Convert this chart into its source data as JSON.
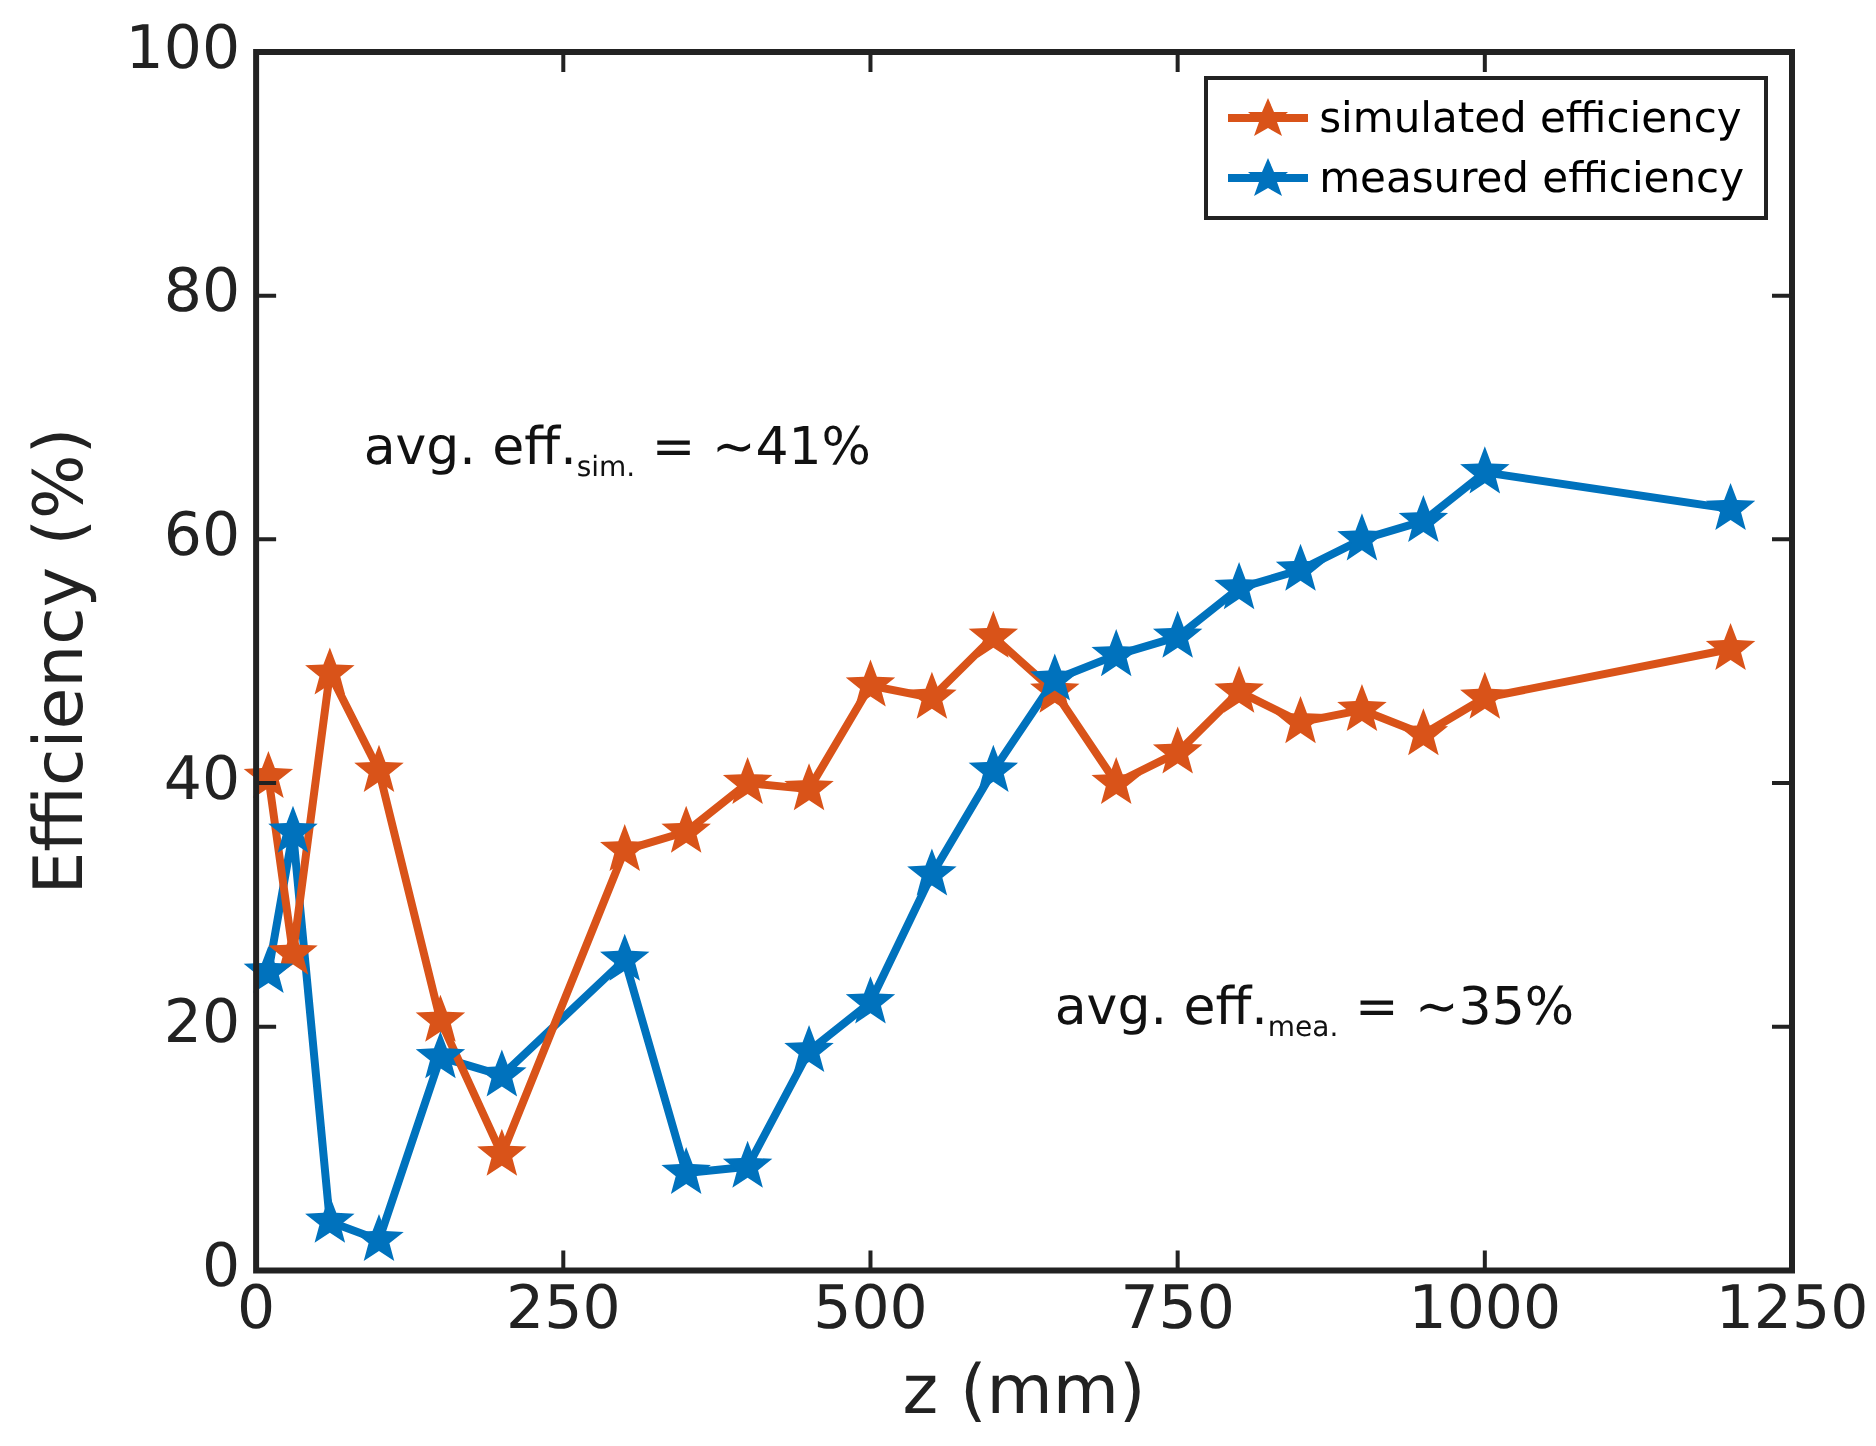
{
  "chart_data": {
    "type": "line",
    "xlabel": "z (mm)",
    "ylabel": "Efficiency (%)",
    "x": [
      10,
      30,
      60,
      100,
      150,
      200,
      300,
      350,
      400,
      450,
      500,
      550,
      600,
      650,
      700,
      750,
      800,
      850,
      900,
      950,
      1000,
      1200
    ],
    "series": [
      {
        "name": "simulated efficiency",
        "color": "#d95319",
        "values": [
          40.5,
          26,
          49,
          41,
          20.5,
          9.5,
          34.5,
          36,
          40,
          39.5,
          48,
          47,
          52,
          47.5,
          40,
          42.5,
          47.5,
          45,
          46,
          44,
          47,
          51
        ]
      },
      {
        "name": "measured efficiency",
        "color": "#0072bd",
        "values": [
          24.5,
          36,
          4,
          2.5,
          17.5,
          16,
          25.5,
          8,
          8.5,
          18,
          22,
          32.5,
          41,
          48.5,
          50.5,
          52,
          56,
          57.5,
          60,
          61.5,
          65.5,
          62.5
        ]
      }
    ],
    "xlim": [
      0,
      1250
    ],
    "xticks": [
      0,
      250,
      500,
      750,
      1000,
      1250
    ],
    "ylim": [
      0,
      100
    ],
    "yticks": [
      0,
      20,
      40,
      60,
      80,
      100
    ],
    "grid": false,
    "legend": "top right",
    "marker": "star",
    "line_style": "solid",
    "annotations": [
      "avg. eff.$_{sim.}$ = ~41%",
      "avg. eff.$_{mea.}$ = ~35%"
    ]
  }
}
